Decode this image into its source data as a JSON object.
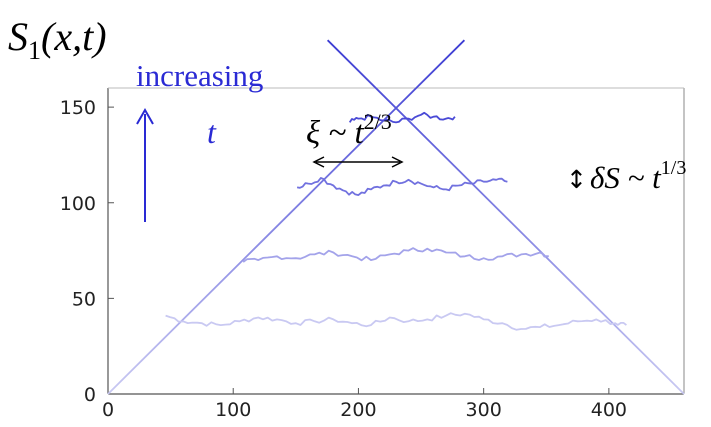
{
  "chart_data": {
    "type": "line",
    "title": "S₁(x,t)",
    "title_parts": {
      "base": "S",
      "sub": "1",
      "args": "(x,t)"
    },
    "xlabel": "",
    "ylabel": "",
    "xlim": [
      0,
      460
    ],
    "ylim": [
      0,
      160
    ],
    "xticks": [
      0,
      100,
      200,
      300,
      400
    ],
    "yticks": [
      0,
      50,
      100,
      150
    ],
    "grid": false,
    "series_colors": [
      "#c9c9f2",
      "#a3a3ea",
      "#7171df",
      "#4a4ad6"
    ],
    "cone": {
      "apex_left": [
        0,
        0
      ],
      "apex_right": [
        460,
        0
      ],
      "slope": 0.65,
      "color": "#3b3bd3"
    },
    "series": [
      {
        "x": [
          46,
          60,
          75,
          90,
          105,
          120,
          135,
          150,
          165,
          180,
          195,
          210,
          225,
          240,
          255,
          270,
          285,
          300,
          315,
          330,
          345,
          360,
          375,
          390,
          405,
          414
        ],
        "values": [
          41,
          38,
          37,
          36,
          38,
          40,
          39,
          37,
          38,
          39,
          37,
          36,
          40,
          38,
          39,
          41,
          42,
          39,
          37,
          34,
          35,
          36,
          38,
          39,
          37,
          36
        ]
      },
      {
        "x": [
          108,
          120,
          135,
          150,
          165,
          180,
          195,
          210,
          225,
          240,
          255,
          270,
          285,
          300,
          315,
          330,
          345,
          352
        ],
        "values": [
          69,
          70,
          72,
          71,
          73,
          74,
          72,
          70,
          73,
          75,
          76,
          74,
          72,
          71,
          72,
          73,
          74,
          72
        ]
      },
      {
        "x": [
          151,
          160,
          170,
          180,
          190,
          200,
          210,
          220,
          230,
          240,
          250,
          260,
          270,
          280,
          290,
          300,
          310,
          319
        ],
        "values": [
          108,
          110,
          113,
          109,
          106,
          104,
          107,
          109,
          111,
          112,
          110,
          108,
          107,
          109,
          110,
          111,
          112,
          111
        ]
      },
      {
        "x": [
          193,
          200,
          210,
          220,
          230,
          240,
          250,
          260,
          270,
          277
        ],
        "values": [
          142,
          144,
          145,
          143,
          142,
          144,
          146,
          145,
          144,
          145
        ]
      }
    ]
  },
  "annotations": {
    "increasing": "increasing",
    "t": "t",
    "xi": "ξ ~ t",
    "xi_exp": "2/3",
    "dS_arrow": "↕",
    "dS": "δS ~ t",
    "dS_exp": "1/3"
  },
  "colors": {
    "accent_blue": "#2a2ad4",
    "axis": "#444444"
  }
}
